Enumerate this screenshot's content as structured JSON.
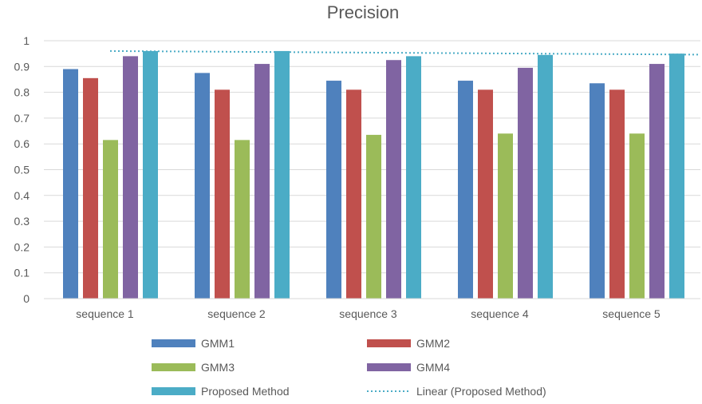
{
  "chart_data": {
    "type": "bar",
    "title": "Precision",
    "xlabel": "",
    "ylabel": "",
    "ylim": [
      0,
      1
    ],
    "yticks": [
      0,
      0.1,
      0.2,
      0.3,
      0.4,
      0.5,
      0.6,
      0.7,
      0.8,
      0.9,
      1
    ],
    "ytick_labels": [
      "0",
      "0.1",
      "0.2",
      "0.3",
      "0.4",
      "0.5",
      "0.6",
      "0.7",
      "0.8",
      "0.9",
      "1"
    ],
    "grid": true,
    "legend_position": "bottom",
    "categories": [
      "sequence 1",
      "sequence 2",
      "sequence 3",
      "sequence 4",
      "sequence 5"
    ],
    "series": [
      {
        "name": "GMM1",
        "color": "#4f81bd",
        "values": [
          0.89,
          0.875,
          0.845,
          0.845,
          0.835
        ]
      },
      {
        "name": "GMM2",
        "color": "#c0504d",
        "values": [
          0.855,
          0.81,
          0.81,
          0.81,
          0.81
        ]
      },
      {
        "name": "GMM3",
        "color": "#9bbb59",
        "values": [
          0.615,
          0.615,
          0.635,
          0.64,
          0.64
        ]
      },
      {
        "name": "GMM4",
        "color": "#8064a2",
        "values": [
          0.94,
          0.91,
          0.925,
          0.895,
          0.91
        ]
      },
      {
        "name": "Proposed Method",
        "color": "#4bacc6",
        "values": [
          0.96,
          0.96,
          0.94,
          0.945,
          0.95
        ]
      }
    ],
    "trendline": {
      "name": "Linear (Proposed Method)",
      "color": "#4bacc6",
      "style": "dotted",
      "of_series": "Proposed Method",
      "values": [
        0.96,
        0.955,
        0.953,
        0.95,
        0.946
      ]
    }
  }
}
